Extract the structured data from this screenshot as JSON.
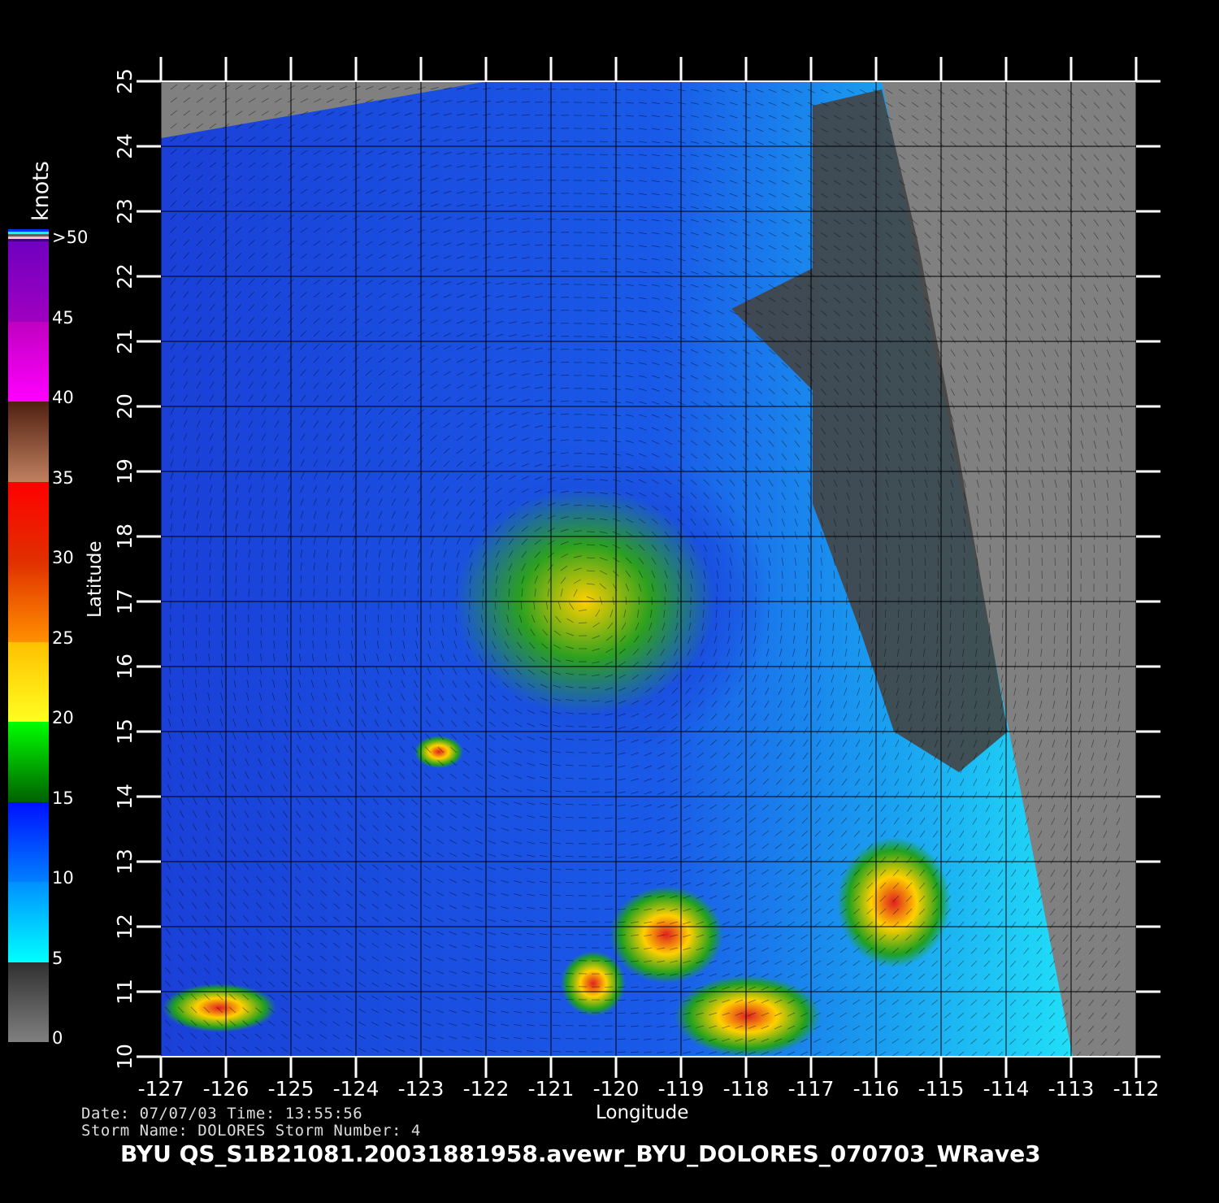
{
  "map": {
    "xlabel": "Longitude",
    "ylabel": "Latitude",
    "lon_range": [
      -127,
      -112
    ],
    "lat_range": [
      10,
      25
    ],
    "lon_ticks": [
      "-127",
      "-126",
      "-125",
      "-124",
      "-123",
      "-122",
      "-121",
      "-120",
      "-119",
      "-118",
      "-117",
      "-116",
      "-115",
      "-114",
      "-113",
      "-112"
    ],
    "lat_ticks": [
      "10",
      "11",
      "12",
      "13",
      "14",
      "15",
      "16",
      "17",
      "18",
      "19",
      "20",
      "21",
      "22",
      "23",
      "24",
      "25"
    ],
    "grid": true,
    "land_color": "#444444",
    "nodata_color": "#808080"
  },
  "colorbar": {
    "unit": "knots",
    "labels": [
      "0",
      "5",
      "10",
      "15",
      "20",
      "25",
      "30",
      "35",
      "40",
      "45",
      ">50"
    ],
    "colors": [
      "#7a7a7a",
      "#00ffff",
      "#0050ff",
      "#008000",
      "#ffff00",
      "#ff8000",
      "#e03000",
      "#c08060",
      "#ff00ff",
      "#7000c0"
    ]
  },
  "info": {
    "date_line": "Date: 07/07/03   Time: 13:55:56",
    "storm_line": "Storm  Name: DOLORES   Storm  Number: 4"
  },
  "title": "BYU  QS_S1B21081.20031881958.avewr_BYU_DOLORES_070703_WRave3"
}
